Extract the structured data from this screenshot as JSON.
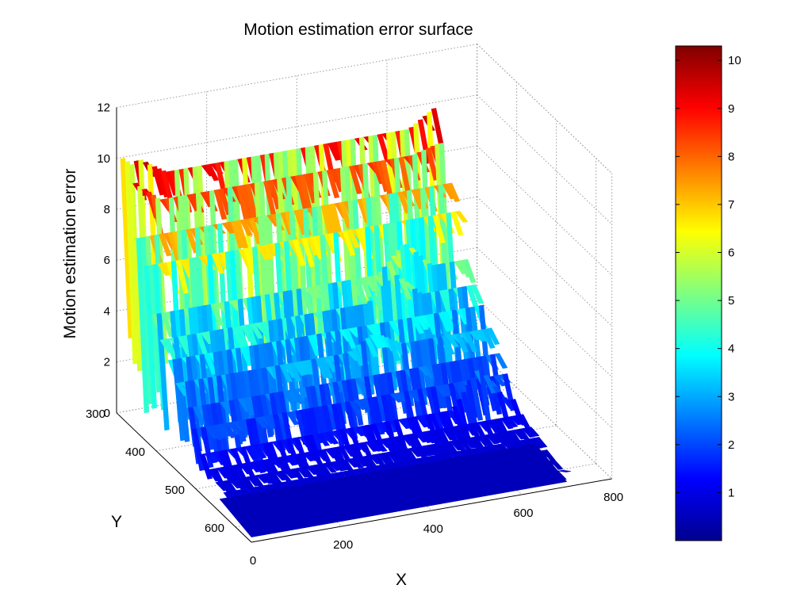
{
  "chart_data": {
    "type": "surface",
    "title": "Motion estimation error surface",
    "xlabel": "X",
    "ylabel": "Y",
    "zlabel": "Motion estimation error",
    "x_ticks": [
      "0",
      "200",
      "400",
      "600",
      "800"
    ],
    "y_ticks": [
      "300",
      "400",
      "500",
      "600"
    ],
    "z_ticks": [
      "0",
      "2",
      "4",
      "6",
      "8",
      "10",
      "12"
    ],
    "xlim": [
      0,
      800
    ],
    "ylim": [
      300,
      640
    ],
    "zlim": [
      0,
      12
    ],
    "grid": true,
    "colormap": "jet",
    "colorbar": {
      "ticks": [
        "1",
        "2",
        "3",
        "4",
        "5",
        "6",
        "7",
        "8",
        "9",
        "10"
      ],
      "range": [
        0,
        10.3
      ]
    },
    "surface_x_extent": [
      0,
      700
    ],
    "surface_y_extent": [
      300,
      640
    ],
    "row_profiles": [
      {
        "y": 310,
        "base": 9.3,
        "peaks": [
          [
            0,
            10.2
          ],
          [
            40,
            10.0
          ],
          [
            700,
            10.0
          ]
        ]
      },
      {
        "y": 330,
        "base": 8.6,
        "peaks": [
          [
            10,
            9.5
          ],
          [
            690,
            8.9
          ]
        ]
      },
      {
        "y": 350,
        "base": 7.6
      },
      {
        "y": 370,
        "base": 6.8
      },
      {
        "y": 390,
        "base": 5.2,
        "peaks": [
          [
            560,
            6.3
          ]
        ]
      },
      {
        "y": 410,
        "base": 4.5,
        "peaks": [
          [
            520,
            5.5
          ]
        ]
      },
      {
        "y": 430,
        "base": 4.0
      },
      {
        "y": 450,
        "base": 3.4,
        "peaks": [
          [
            440,
            4.0
          ]
        ]
      },
      {
        "y": 470,
        "base": 2.7
      },
      {
        "y": 490,
        "base": 2.2
      },
      {
        "y": 510,
        "base": 1.5,
        "peaks": [
          [
            620,
            3.0
          ]
        ]
      },
      {
        "y": 530,
        "base": 1.2
      },
      {
        "y": 550,
        "base": 1.0
      },
      {
        "y": 570,
        "base": 0.9
      },
      {
        "y": 590,
        "base": 0.7
      },
      {
        "y": 610,
        "base": 0.6
      },
      {
        "y": 630,
        "base": 0.5
      }
    ],
    "spike_value_low": 0.8
  }
}
